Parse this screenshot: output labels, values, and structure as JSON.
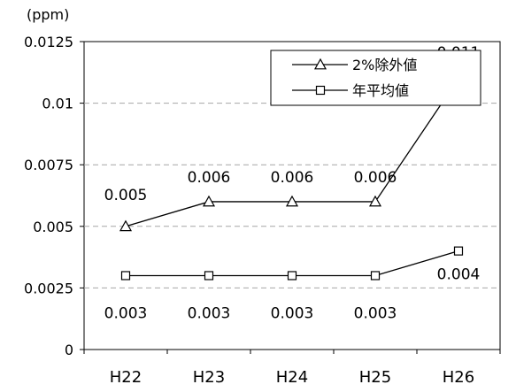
{
  "chart_data": {
    "type": "line",
    "unit_label": "(ppm)",
    "categories": [
      "H22",
      "H23",
      "H24",
      "H25",
      "H26"
    ],
    "ylim": [
      0,
      0.0125
    ],
    "yticks": [
      0,
      0.0025,
      0.005,
      0.0075,
      0.01,
      0.0125
    ],
    "ytick_labels": [
      "0",
      "0.0025",
      "0.005",
      "0.0075",
      "0.01",
      "0.0125"
    ],
    "grid": "horizontal-dashed",
    "legend_position": "top-right",
    "series": [
      {
        "name": "2%除外値",
        "marker": "triangle",
        "values": [
          0.005,
          0.006,
          0.006,
          0.006,
          0.011
        ],
        "data_labels": [
          "0.005",
          "0.006",
          "0.006",
          "0.006",
          "0.011"
        ]
      },
      {
        "name": "年平均値",
        "marker": "square",
        "values": [
          0.003,
          0.003,
          0.003,
          0.003,
          0.004
        ],
        "data_labels": [
          "0.003",
          "0.003",
          "0.003",
          "0.003",
          "0.004"
        ]
      }
    ],
    "colors": {
      "line": "#000000",
      "grid": "#a6a6a6",
      "background": "#ffffff"
    }
  }
}
